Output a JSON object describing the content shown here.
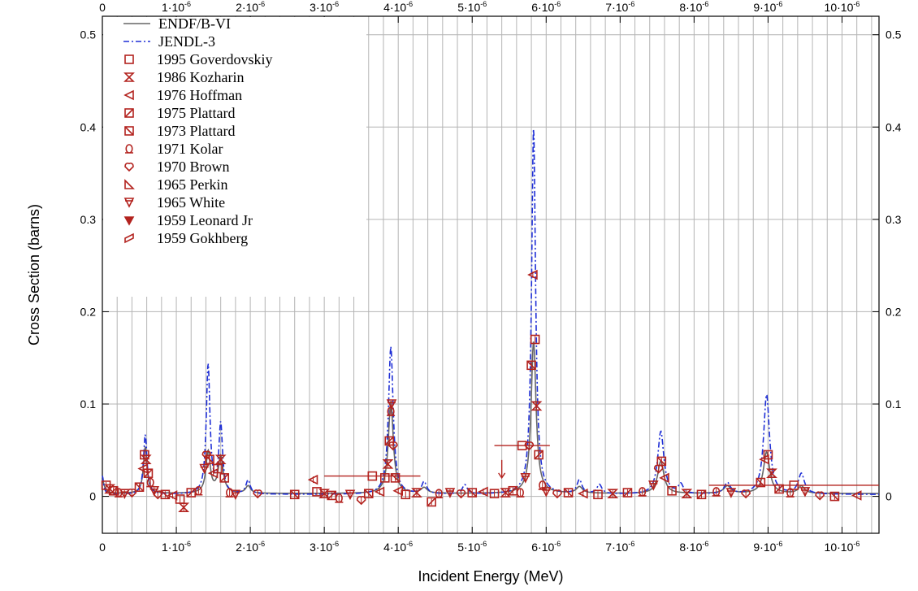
{
  "chart_data": {
    "type": "line",
    "xlabel": "Incident Energy (MeV)",
    "ylabel": "Cross Section (barns)",
    "xlim": [
      0,
      1.05e-05
    ],
    "ylim": [
      -0.04,
      0.52
    ],
    "x_ticks": [
      {
        "v": 0,
        "label": "0"
      },
      {
        "v": 1e-06,
        "label": "1·10",
        "exp": "-6"
      },
      {
        "v": 2e-06,
        "label": "2·10",
        "exp": "-6"
      },
      {
        "v": 3e-06,
        "label": "3·10",
        "exp": "-6"
      },
      {
        "v": 4e-06,
        "label": "4·10",
        "exp": "-6"
      },
      {
        "v": 5e-06,
        "label": "5·10",
        "exp": "-6"
      },
      {
        "v": 6e-06,
        "label": "6·10",
        "exp": "-6"
      },
      {
        "v": 7e-06,
        "label": "7·10",
        "exp": "-6"
      },
      {
        "v": 8e-06,
        "label": "8·10",
        "exp": "-6"
      },
      {
        "v": 9e-06,
        "label": "9·10",
        "exp": "-6"
      },
      {
        "v": 1e-05,
        "label": "10·10",
        "exp": "-6"
      }
    ],
    "y_ticks": [
      {
        "v": 0,
        "label": "0"
      },
      {
        "v": 0.1,
        "label": "0.1"
      },
      {
        "v": 0.2,
        "label": "0.2"
      },
      {
        "v": 0.3,
        "label": "0.3"
      },
      {
        "v": 0.4,
        "label": "0.4"
      },
      {
        "v": 0.5,
        "label": "0.5"
      }
    ],
    "grid": true,
    "legend_position": "top-left",
    "colors": {
      "endf": "#666666",
      "jendl": "#1f2fd6",
      "exp": "#b3231f",
      "grid": "#b4b4b4"
    },
    "curves": [
      {
        "name": "ENDF/B-VI",
        "baseline": 0.003,
        "peaks": [
          {
            "e0": 0.0,
            "h": 0.015,
            "w": 3e-08
          },
          {
            "e0": 5.8e-07,
            "h": 0.05,
            "w": 3e-08
          },
          {
            "e0": 1.43e-06,
            "h": 0.045,
            "w": 3.5e-08
          },
          {
            "e0": 1.6e-06,
            "h": 0.04,
            "w": 4e-08
          },
          {
            "e0": 1.97e-06,
            "h": 0.008,
            "w": 4e-08
          },
          {
            "e0": 3.9e-06,
            "h": 0.1,
            "w": 4e-08
          },
          {
            "e0": 4.35e-06,
            "h": 0.006,
            "w": 5e-08
          },
          {
            "e0": 5.83e-06,
            "h": 0.165,
            "w": 4e-08
          },
          {
            "e0": 6.45e-06,
            "h": 0.007,
            "w": 5e-08
          },
          {
            "e0": 7.55e-06,
            "h": 0.035,
            "w": 5e-08
          },
          {
            "e0": 8.45e-06,
            "h": 0.008,
            "w": 6e-08
          },
          {
            "e0": 8.98e-06,
            "h": 0.045,
            "w": 5e-08
          },
          {
            "e0": 9.45e-06,
            "h": 0.008,
            "w": 5e-08
          }
        ]
      },
      {
        "name": "JENDL-3",
        "baseline": 0.002,
        "peaks": [
          {
            "e0": 0.0,
            "h": 0.02,
            "w": 2e-08
          },
          {
            "e0": 5.8e-07,
            "h": 0.065,
            "w": 2.8e-08
          },
          {
            "e0": 1.43e-06,
            "h": 0.14,
            "w": 3e-08
          },
          {
            "e0": 1.6e-06,
            "h": 0.075,
            "w": 3e-08
          },
          {
            "e0": 1.97e-06,
            "h": 0.015,
            "w": 3.5e-08
          },
          {
            "e0": 3.9e-06,
            "h": 0.16,
            "w": 3.8e-08
          },
          {
            "e0": 4.35e-06,
            "h": 0.013,
            "w": 4e-08
          },
          {
            "e0": 4.9e-06,
            "h": 0.01,
            "w": 4e-08
          },
          {
            "e0": 5.83e-06,
            "h": 0.398,
            "w": 3.2e-08
          },
          {
            "e0": 6.45e-06,
            "h": 0.015,
            "w": 4e-08
          },
          {
            "e0": 6.72e-06,
            "h": 0.01,
            "w": 4e-08
          },
          {
            "e0": 7.55e-06,
            "h": 0.068,
            "w": 5e-08
          },
          {
            "e0": 7.82e-06,
            "h": 0.01,
            "w": 4e-08
          },
          {
            "e0": 8.45e-06,
            "h": 0.012,
            "w": 5e-08
          },
          {
            "e0": 8.98e-06,
            "h": 0.108,
            "w": 4.8e-08
          },
          {
            "e0": 9.45e-06,
            "h": 0.022,
            "w": 5e-08
          }
        ]
      }
    ],
    "exp_points": [
      [
        5e-08,
        0.012
      ],
      [
        1e-07,
        0.008
      ],
      [
        1.5e-07,
        0.006
      ],
      [
        2.2e-07,
        0.004
      ],
      [
        3e-07,
        0.003
      ],
      [
        4e-07,
        0.004
      ],
      [
        5e-07,
        0.01
      ],
      [
        5.5e-07,
        0.03
      ],
      [
        5.7e-07,
        0.045
      ],
      [
        5.9e-07,
        0.04
      ],
      [
        6.2e-07,
        0.025
      ],
      [
        6.5e-07,
        0.015
      ],
      [
        7e-07,
        0.006
      ],
      [
        7.5e-07,
        0.002
      ],
      [
        8.5e-07,
        0.002
      ],
      [
        9.5e-07,
        0.001
      ],
      [
        1.05e-06,
        -0.003
      ],
      [
        1.1e-06,
        -0.012
      ],
      [
        1.2e-06,
        0.004
      ],
      [
        1.3e-06,
        0.006
      ],
      [
        1.38e-06,
        0.03
      ],
      [
        1.41e-06,
        0.045
      ],
      [
        1.45e-06,
        0.04
      ],
      [
        1.5e-06,
        0.025
      ],
      [
        1.56e-06,
        0.03
      ],
      [
        1.6e-06,
        0.04
      ],
      [
        1.65e-06,
        0.02
      ],
      [
        1.72e-06,
        0.004
      ],
      [
        1.8e-06,
        0.002
      ],
      [
        2.1e-06,
        0.003
      ],
      [
        2.6e-06,
        0.002
      ],
      [
        2.85e-06,
        0.018
      ],
      [
        2.9e-06,
        0.005
      ],
      [
        3e-06,
        0.003
      ],
      [
        3.1e-06,
        0.001
      ],
      [
        3.2e-06,
        -0.002
      ],
      [
        3.35e-06,
        0.002
      ],
      [
        3.5e-06,
        -0.004
      ],
      [
        3.6e-06,
        0.003
      ],
      [
        3.75e-06,
        0.005
      ],
      [
        3.82e-06,
        0.02
      ],
      [
        3.86e-06,
        0.035
      ],
      [
        3.88e-06,
        0.06
      ],
      [
        3.9e-06,
        0.092
      ],
      [
        3.91e-06,
        0.1
      ],
      [
        3.93e-06,
        0.055
      ],
      [
        3.96e-06,
        0.02
      ],
      [
        4e-06,
        0.006
      ],
      [
        4.1e-06,
        0.002
      ],
      [
        4.25e-06,
        0.004
      ],
      [
        4.45e-06,
        -0.006
      ],
      [
        4.55e-06,
        0.003
      ],
      [
        4.7e-06,
        0.004
      ],
      [
        4.85e-06,
        0.003
      ],
      [
        5e-06,
        0.004
      ],
      [
        5.15e-06,
        0.005
      ],
      [
        5.3e-06,
        0.003
      ],
      [
        5.45e-06,
        0.004
      ],
      [
        5.55e-06,
        0.006
      ],
      [
        5.65e-06,
        0.004
      ],
      [
        5.72e-06,
        0.02
      ],
      [
        5.77e-06,
        0.055
      ],
      [
        5.8e-06,
        0.142
      ],
      [
        5.82e-06,
        0.24
      ],
      [
        5.85e-06,
        0.17
      ],
      [
        5.87e-06,
        0.098
      ],
      [
        5.9e-06,
        0.045
      ],
      [
        5.95e-06,
        0.012
      ],
      [
        6e-06,
        0.005
      ],
      [
        6.15e-06,
        0.003
      ],
      [
        6.3e-06,
        0.004
      ],
      [
        6.5e-06,
        0.003
      ],
      [
        6.7e-06,
        0.002
      ],
      [
        6.9e-06,
        0.003
      ],
      [
        7.1e-06,
        0.004
      ],
      [
        7.3e-06,
        0.005
      ],
      [
        7.45e-06,
        0.012
      ],
      [
        7.52e-06,
        0.03
      ],
      [
        7.56e-06,
        0.038
      ],
      [
        7.6e-06,
        0.02
      ],
      [
        7.7e-06,
        0.006
      ],
      [
        7.9e-06,
        0.003
      ],
      [
        8.1e-06,
        0.002
      ],
      [
        8.3e-06,
        0.005
      ],
      [
        8.5e-06,
        0.004
      ],
      [
        8.7e-06,
        0.003
      ],
      [
        8.9e-06,
        0.015
      ],
      [
        8.95e-06,
        0.04
      ],
      [
        9e-06,
        0.045
      ],
      [
        9.05e-06,
        0.025
      ],
      [
        9.15e-06,
        0.008
      ],
      [
        9.3e-06,
        0.004
      ],
      [
        9.5e-06,
        0.005
      ],
      [
        9.7e-06,
        0.001
      ],
      [
        9.9e-06,
        0.0
      ],
      [
        1.02e-05,
        0.001
      ]
    ],
    "exp_hbars": [
      {
        "x1": 3e-06,
        "x2": 4.3e-06,
        "y": 0.022
      },
      {
        "x1": 5.3e-06,
        "x2": 6.05e-06,
        "y": 0.055
      },
      {
        "x1": 8.2e-06,
        "x2": 1.05e-05,
        "y": 0.012
      }
    ],
    "exp_arrows": [
      {
        "x": 5.4e-06,
        "y": 0.02
      }
    ],
    "legend": [
      {
        "label": "ENDF/B-VI",
        "kind": "line-solid"
      },
      {
        "label": "JENDL-3",
        "kind": "line-dash"
      },
      {
        "label": "1995 Goverdovskiy",
        "kind": "square"
      },
      {
        "label": "1986 Kozharin",
        "kind": "bowtie"
      },
      {
        "label": "1976 Hoffman",
        "kind": "tri-left"
      },
      {
        "label": "1975 Plattard",
        "kind": "sq-x"
      },
      {
        "label": "1973 Plattard",
        "kind": "sq-diag"
      },
      {
        "label": "1971 Kolar",
        "kind": "spade"
      },
      {
        "label": "1970 Brown",
        "kind": "heart"
      },
      {
        "label": "1965 Perkin",
        "kind": "tri-right"
      },
      {
        "label": "1965 White",
        "kind": "tri-down"
      },
      {
        "label": "1959 Leonard Jr",
        "kind": "tri-down-small"
      },
      {
        "label": "1959 Gokhberg",
        "kind": "leaf"
      }
    ]
  }
}
